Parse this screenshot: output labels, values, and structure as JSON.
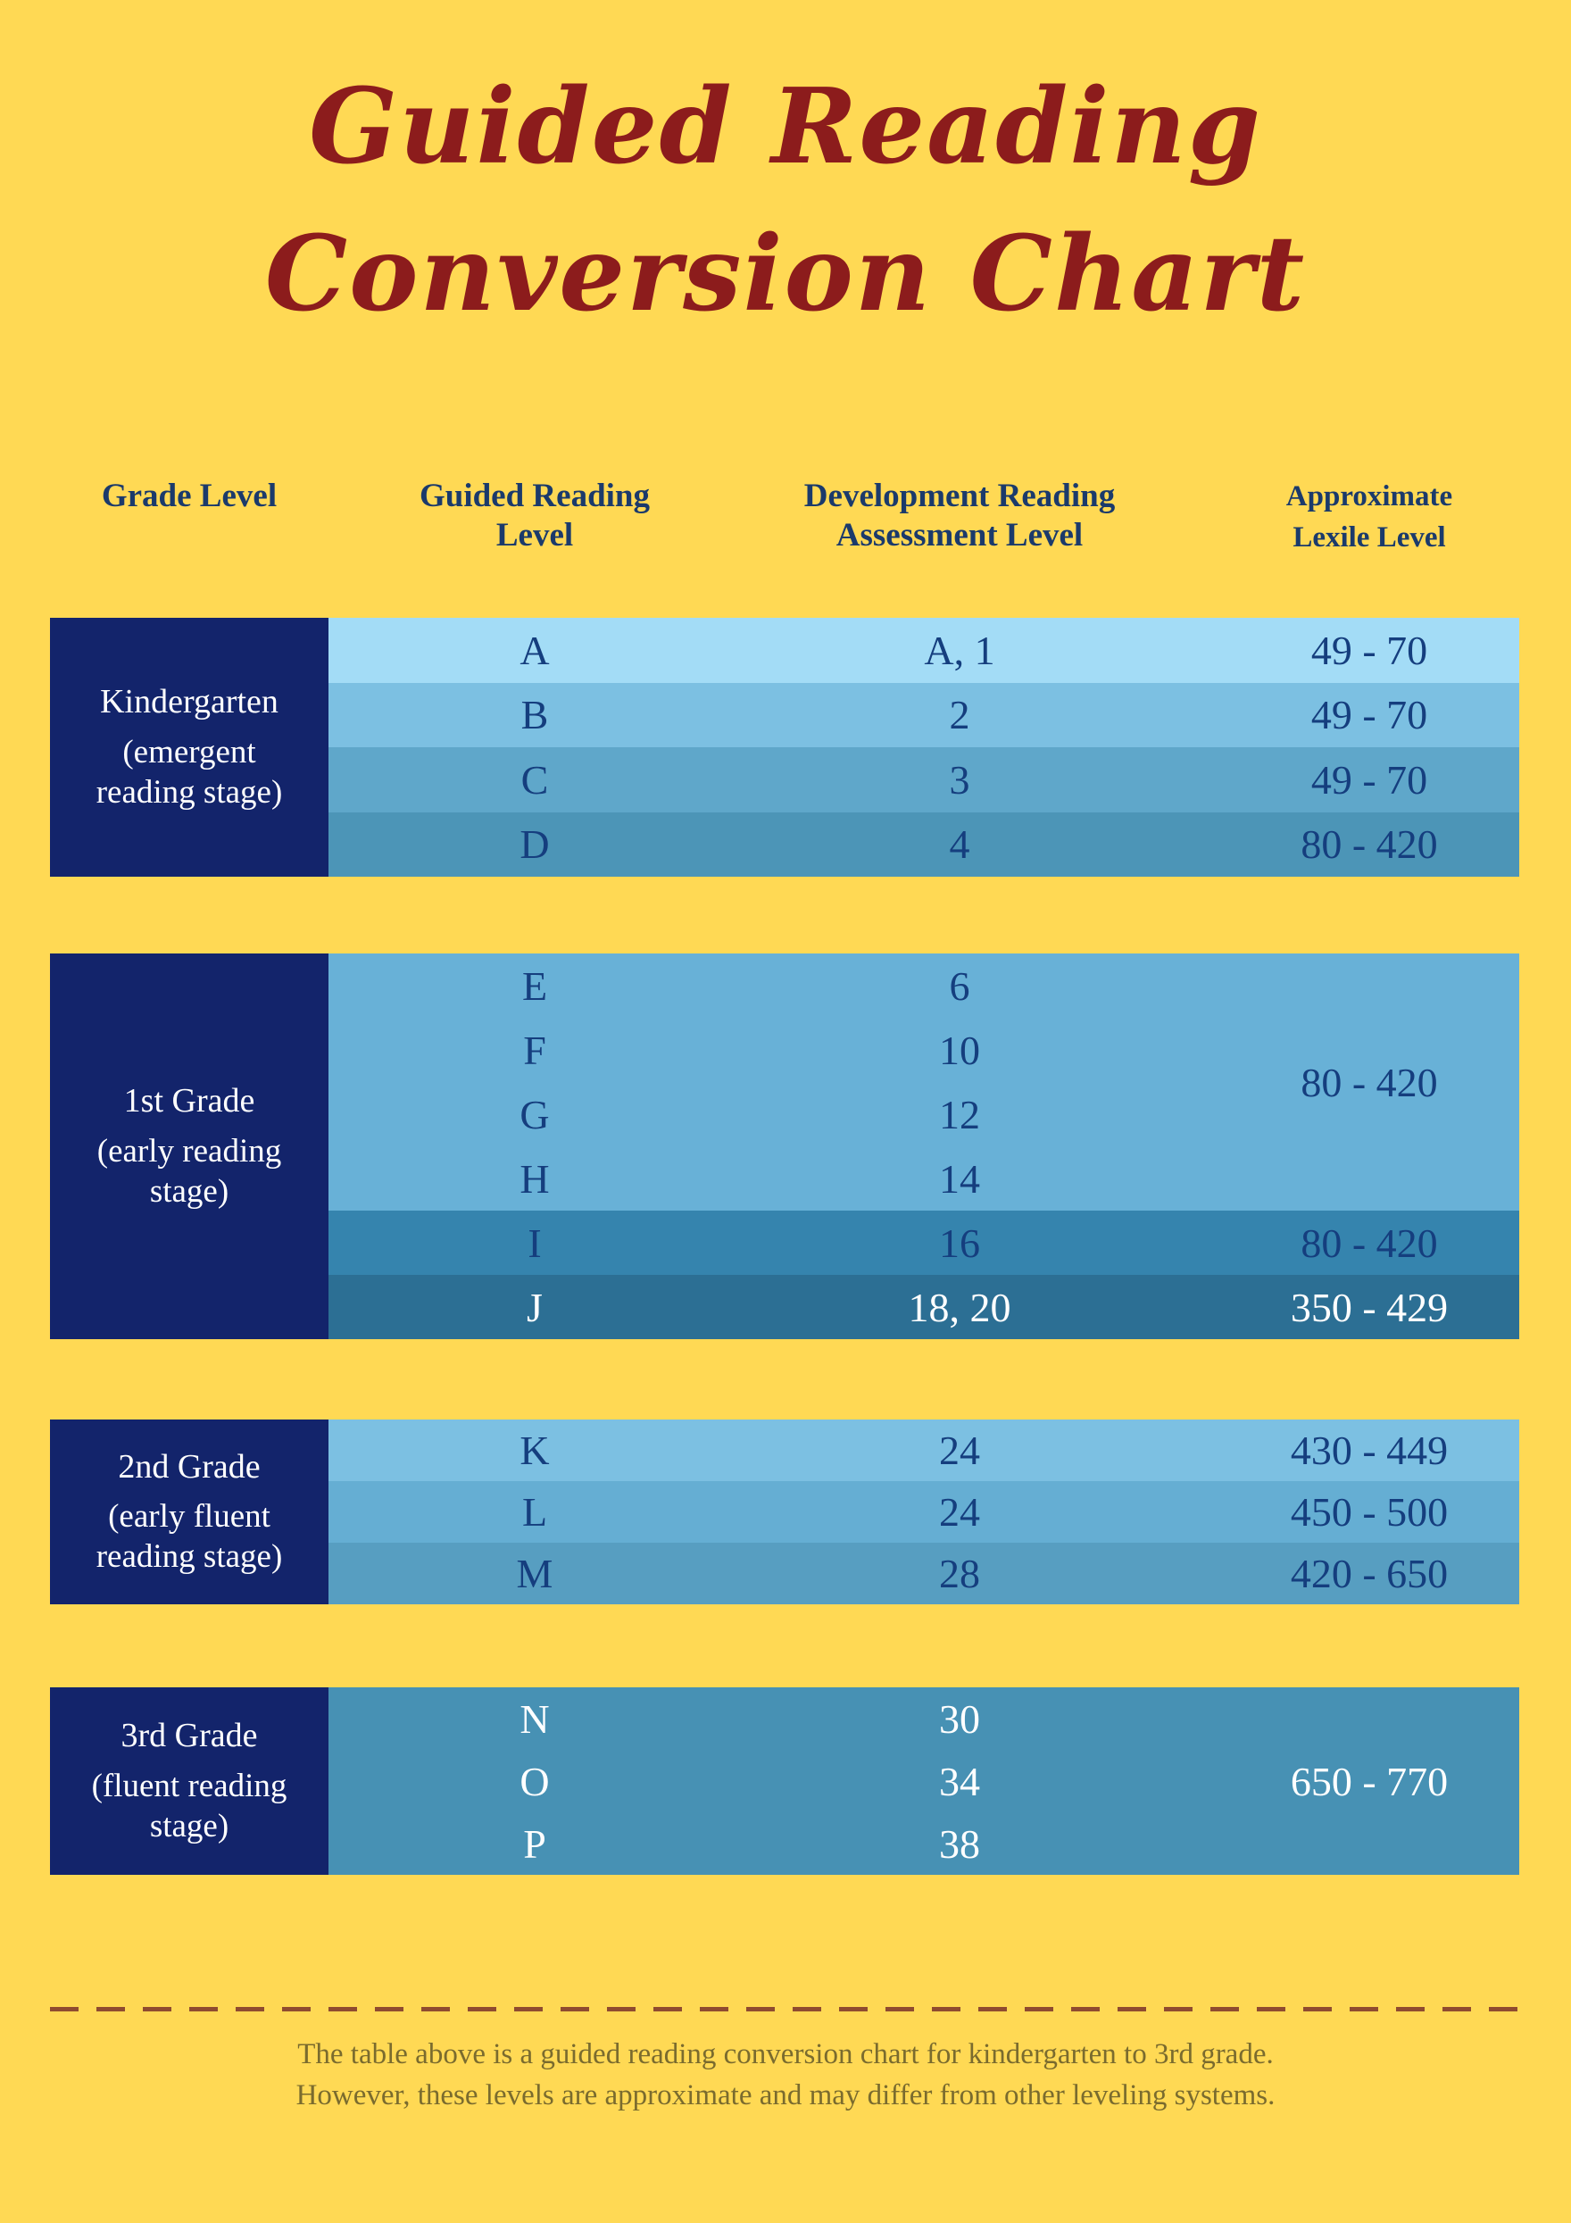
{
  "colors": {
    "background": "#FFD954",
    "title": "#8C1C1C",
    "header_text": "#1B3A6B",
    "table_text_navy": "#153E7E",
    "grade_cell_bg": "#13246B",
    "grade_cell_text": "#FFFFFF",
    "footer_text": "#7A6B2E",
    "divider": "#8F4B30"
  },
  "title": {
    "line1": "Guided Reading",
    "line2": "Conversion Chart"
  },
  "table": {
    "headers": [
      "Grade Level",
      "Guided Reading Level",
      "Development Reading Assessment Level",
      "Approximate Lexile Level"
    ],
    "groups": [
      {
        "grade": "Kindergarten",
        "stage": "(emergent reading stage)",
        "segments": [
          {
            "bg": "#A3DCF6",
            "fg": "#153E7E",
            "lexile": "49 - 70",
            "rows": [
              {
                "grl": "A",
                "dra": "A, 1"
              }
            ]
          },
          {
            "bg": "#7CC0E2",
            "fg": "#153E7E",
            "lexile": "49 - 70",
            "rows": [
              {
                "grl": "B",
                "dra": "2"
              }
            ]
          },
          {
            "bg": "#5FA7CA",
            "fg": "#153E7E",
            "lexile": "49 - 70",
            "rows": [
              {
                "grl": "C",
                "dra": "3"
              }
            ]
          },
          {
            "bg": "#4C95B7",
            "fg": "#153E7E",
            "lexile": "80 - 420",
            "rows": [
              {
                "grl": "D",
                "dra": "4"
              }
            ]
          }
        ]
      },
      {
        "grade": "1st Grade",
        "stage": "(early reading stage)",
        "segments": [
          {
            "bg": "#68B1D7",
            "fg": "#153E7E",
            "lexile": "80 - 420",
            "rows": [
              {
                "grl": "E",
                "dra": "6"
              },
              {
                "grl": "F",
                "dra": "10"
              },
              {
                "grl": "G",
                "dra": "12"
              },
              {
                "grl": "H",
                "dra": "14"
              }
            ]
          },
          {
            "bg": "#3584AE",
            "fg": "#153E7E",
            "lexile": "80 - 420",
            "rows": [
              {
                "grl": "I",
                "dra": "16"
              }
            ]
          },
          {
            "bg": "#2C6F94",
            "fg": "#FFFFFF",
            "lexile": "350 - 429",
            "rows": [
              {
                "grl": "J",
                "dra": "18, 20"
              }
            ]
          }
        ]
      },
      {
        "grade": "2nd Grade",
        "stage": "(early fluent reading stage)",
        "segments": [
          {
            "bg": "#7CC0E2",
            "fg": "#153E7E",
            "lexile": "430 - 449",
            "rows": [
              {
                "grl": "K",
                "dra": "24"
              }
            ]
          },
          {
            "bg": "#65AED3",
            "fg": "#153E7E",
            "lexile": "450 - 500",
            "rows": [
              {
                "grl": "L",
                "dra": "24"
              }
            ]
          },
          {
            "bg": "#579EC1",
            "fg": "#153E7E",
            "lexile": "420 - 650",
            "rows": [
              {
                "grl": "M",
                "dra": "28"
              }
            ]
          }
        ]
      },
      {
        "grade": "3rd Grade",
        "stage": "(fluent reading stage)",
        "segments": [
          {
            "bg": "#4791B4",
            "fg": "#FFFFFF",
            "lexile": "650 - 770",
            "rows": [
              {
                "grl": "N",
                "dra": "30"
              },
              {
                "grl": "O",
                "dra": "34"
              },
              {
                "grl": "P",
                "dra": "38"
              }
            ]
          }
        ]
      }
    ]
  },
  "footer": {
    "lines": [
      "The table above is a guided reading conversion chart for kindergarten to 3rd grade.",
      "However, these levels are approximate and may differ from other leveling systems."
    ]
  }
}
